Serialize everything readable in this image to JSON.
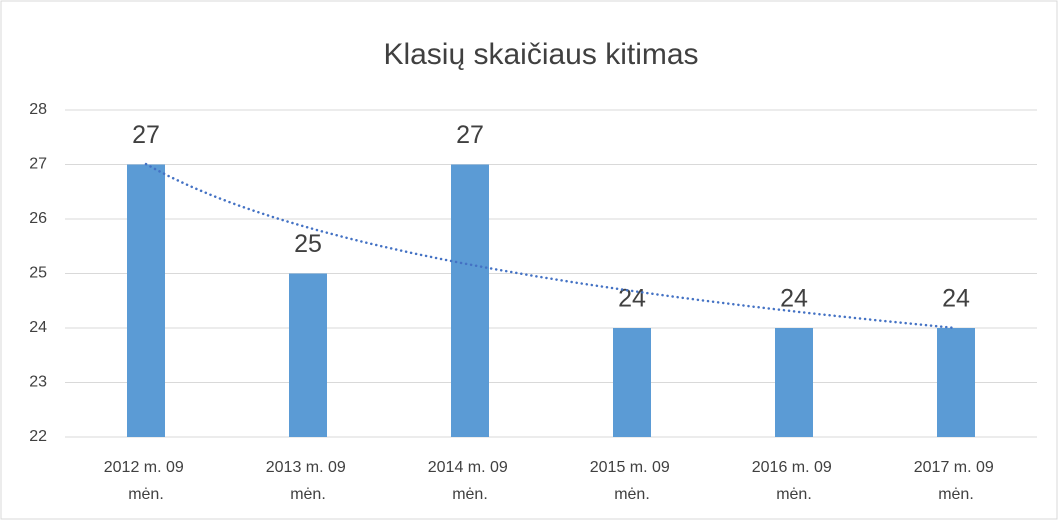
{
  "chart_data": {
    "type": "bar",
    "title": "Klasių skaičiaus kitimas",
    "categories": [
      "2012 m. 09 mėn.",
      "2013 m. 09 mėn.",
      "2014 m. 09 mėn.",
      "2015 m. 09 mėn.",
      "2016 m. 09 mėn.",
      "2017 m. 09 mėn."
    ],
    "values": [
      27,
      25,
      27,
      24,
      24,
      24
    ],
    "color": "#5b9bd5",
    "ylim": [
      22,
      28
    ],
    "yticks": [
      22,
      23,
      24,
      25,
      26,
      27,
      28
    ],
    "grid": true
  }
}
